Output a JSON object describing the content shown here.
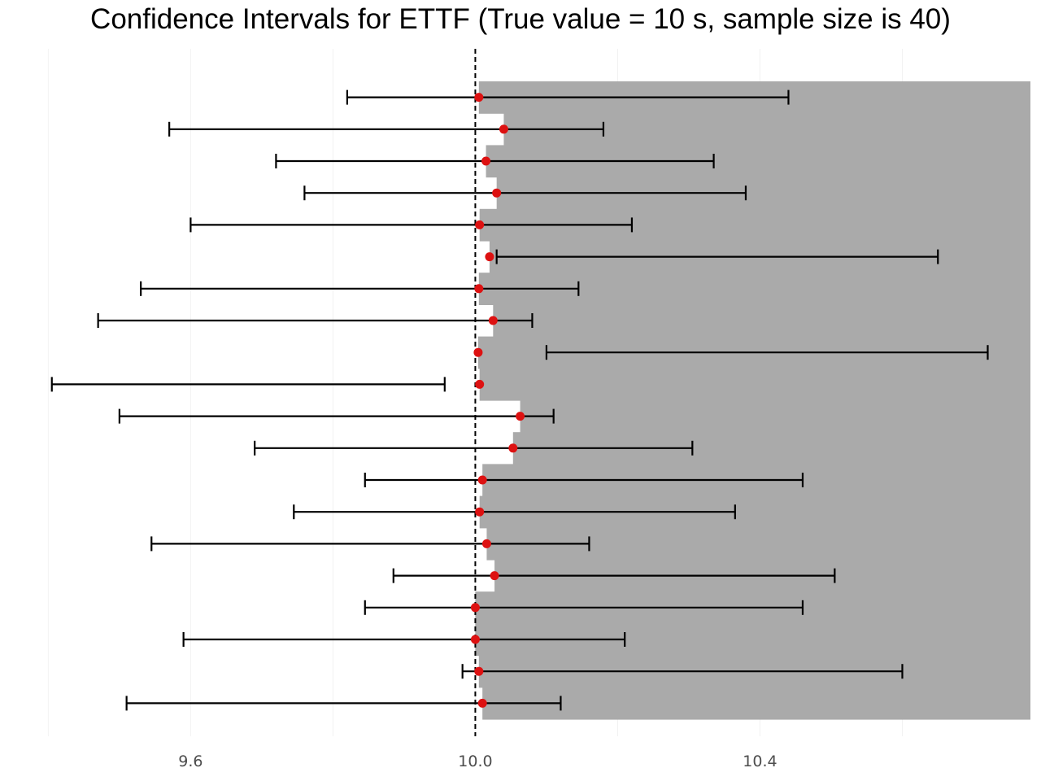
{
  "chart_data": {
    "type": "errorbar",
    "title": "Confidence Intervals for ETTF (True value = 10 s, sample size is 40)",
    "xlabel": "",
    "ylabel": "",
    "xlim": [
      9.395,
      10.78
    ],
    "xticks": [
      9.6,
      10.0,
      10.4
    ],
    "xtick_labels": [
      "9.6",
      "10.0",
      "10.4"
    ],
    "grid": "vertical only, very faint",
    "true_value": 10.0,
    "reference_line": "dashed black vertical line at true value",
    "intervals": [
      {
        "lower": 9.82,
        "estimate": 10.005,
        "upper": 10.44
      },
      {
        "lower": 9.57,
        "estimate": 10.04,
        "upper": 10.18
      },
      {
        "lower": 9.72,
        "estimate": 10.015,
        "upper": 10.335
      },
      {
        "lower": 9.76,
        "estimate": 10.03,
        "upper": 10.38
      },
      {
        "lower": 9.6,
        "estimate": 10.006,
        "upper": 10.22
      },
      {
        "lower": 10.03,
        "estimate": 10.02,
        "upper": 10.65
      },
      {
        "lower": 9.53,
        "estimate": 10.005,
        "upper": 10.145
      },
      {
        "lower": 9.47,
        "estimate": 10.025,
        "upper": 10.08
      },
      {
        "lower": 10.1,
        "estimate": 10.004,
        "upper": 10.72
      },
      {
        "lower": 9.405,
        "estimate": 10.006,
        "upper": 9.957
      },
      {
        "lower": 9.5,
        "estimate": 10.063,
        "upper": 10.11
      },
      {
        "lower": 9.69,
        "estimate": 10.053,
        "upper": 10.305
      },
      {
        "lower": 9.845,
        "estimate": 10.01,
        "upper": 10.46
      },
      {
        "lower": 9.745,
        "estimate": 10.006,
        "upper": 10.365
      },
      {
        "lower": 9.545,
        "estimate": 10.016,
        "upper": 10.16
      },
      {
        "lower": 9.885,
        "estimate": 10.027,
        "upper": 10.505
      },
      {
        "lower": 9.845,
        "estimate": 10.0,
        "upper": 10.46
      },
      {
        "lower": 9.59,
        "estimate": 10.0,
        "upper": 10.21
      },
      {
        "lower": 9.982,
        "estimate": 10.005,
        "upper": 10.6
      },
      {
        "lower": 9.51,
        "estimate": 10.01,
        "upper": 10.12
      }
    ],
    "colors": {
      "shade": "#aaaaaa",
      "estimate": "#dd1111",
      "interval": "#000000",
      "reference": "#000000",
      "tick_text": "#4d4d4d",
      "grid": "#f2f2f2"
    }
  }
}
